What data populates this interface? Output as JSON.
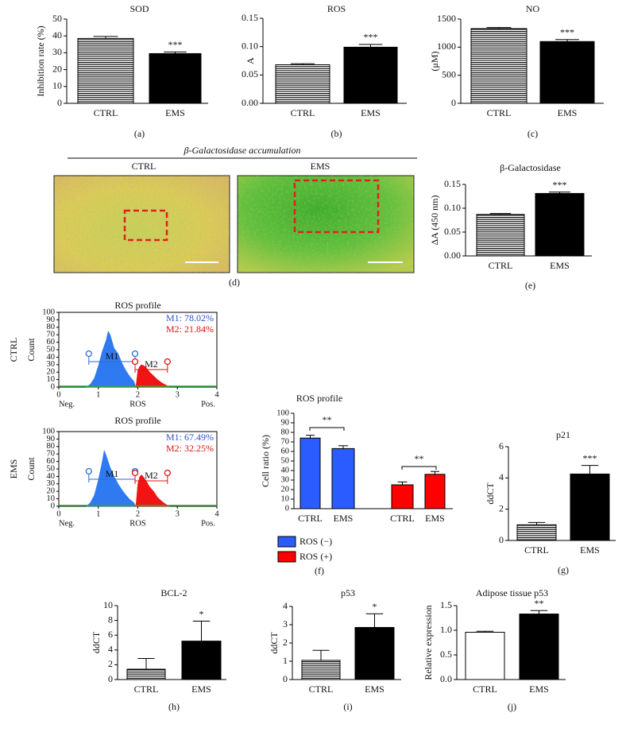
{
  "chart_data": [
    {
      "type": "bar",
      "title": "SOD",
      "panel_label": "(a)",
      "ylabel": "Inhibition rate (%)",
      "categories": [
        "CTRL",
        "EMS"
      ],
      "values": [
        38.5,
        29.5
      ],
      "errors": [
        1.2,
        1.0
      ],
      "significance": [
        null,
        "***"
      ],
      "colors": [
        "#000000",
        "#000000"
      ],
      "hatch": [
        true,
        false
      ],
      "ylim": [
        0,
        50
      ],
      "yticks": [
        0,
        10,
        20,
        30,
        40,
        50
      ]
    },
    {
      "type": "bar",
      "title": "ROS",
      "panel_label": "(b)",
      "ylabel": "A",
      "categories": [
        "CTRL",
        "EMS"
      ],
      "values": [
        0.068,
        0.099
      ],
      "errors": [
        0.002,
        0.005
      ],
      "significance": [
        null,
        "***"
      ],
      "colors": [
        "#000000",
        "#000000"
      ],
      "hatch": [
        true,
        false
      ],
      "ylim": [
        0,
        0.15
      ],
      "yticks": [
        {
          "value": 0,
          "label": "0.00"
        },
        0.05,
        {
          "value": 0.1,
          "label": "0.10"
        },
        0.15
      ]
    },
    {
      "type": "bar",
      "title": "NO",
      "panel_label": "(c)",
      "ylabel": "(μM)",
      "categories": [
        "CTRL",
        "EMS"
      ],
      "values": [
        1330,
        1100
      ],
      "errors": [
        20,
        35
      ],
      "significance": [
        null,
        "***"
      ],
      "colors": [
        "#000000",
        "#000000"
      ],
      "hatch": [
        true,
        false
      ],
      "ylim": [
        0,
        1500
      ],
      "yticks": [
        0,
        500,
        1000,
        1500
      ]
    },
    {
      "type": "bar",
      "title": "β-Galactosidase",
      "panel_label": "(e)",
      "ylabel": "ΔA (450 nm)",
      "categories": [
        "CTRL",
        "EMS"
      ],
      "values": [
        0.087,
        0.131
      ],
      "errors": [
        0.002,
        0.003
      ],
      "significance": [
        null,
        "***"
      ],
      "colors": [
        "#000000",
        "#000000"
      ],
      "hatch": [
        true,
        false
      ],
      "ylim": [
        0,
        0.15
      ],
      "yticks": [
        {
          "value": 0,
          "label": "0.00"
        },
        0.05,
        {
          "value": 0.1,
          "label": "0.10"
        },
        0.15
      ]
    },
    {
      "type": "area",
      "title": "ROS profile",
      "row_label": "CTRL",
      "ylabel": "Count",
      "xlabel": "ROS",
      "x_end_labels": [
        "Neg.",
        "Pos."
      ],
      "xlim": [
        0,
        4
      ],
      "ylim": [
        0,
        100
      ],
      "xticks": [
        0,
        1,
        2,
        3,
        4
      ],
      "yticks": [
        0,
        10,
        20,
        30,
        40,
        50,
        60,
        70,
        80,
        90,
        100
      ],
      "series": [
        {
          "color": "#2f7af0",
          "x": [
            0.7,
            0.8,
            0.9,
            1.0,
            1.1,
            1.2,
            1.25,
            1.3,
            1.4,
            1.5,
            1.6,
            1.7,
            1.8,
            1.9,
            1.95
          ],
          "values": [
            0,
            4,
            12,
            28,
            48,
            63,
            75,
            70,
            52,
            45,
            32,
            22,
            14,
            8,
            0
          ]
        },
        {
          "color": "#f01414",
          "x": [
            1.95,
            2.0,
            2.05,
            2.1,
            2.2,
            2.3,
            2.4,
            2.5,
            2.6,
            2.7,
            2.8
          ],
          "values": [
            0,
            22,
            28,
            30,
            27,
            20,
            15,
            10,
            6,
            3,
            0
          ]
        }
      ],
      "gates": [
        {
          "name": "M1",
          "color": "#2b6cd6",
          "range": [
            0.76,
            1.93
          ]
        },
        {
          "name": "M2",
          "color": "#e01010",
          "range": [
            1.93,
            2.75
          ]
        }
      ],
      "stats": [
        {
          "text": "M1: 78.02%",
          "color": "#3050d0"
        },
        {
          "text": "M2: 21.84%",
          "color": "#e01010"
        }
      ]
    },
    {
      "type": "area",
      "title": "ROS profile",
      "row_label": "EMS",
      "ylabel": "Count",
      "xlabel": "ROS",
      "x_end_labels": [
        "Neg.",
        "Pos."
      ],
      "xlim": [
        0,
        4
      ],
      "ylim": [
        0,
        100
      ],
      "xticks": [
        0,
        1,
        2,
        3,
        4
      ],
      "yticks": [
        0,
        10,
        20,
        30,
        40,
        50,
        60,
        70,
        80,
        90,
        100
      ],
      "series": [
        {
          "color": "#2f7af0",
          "x": [
            0.7,
            0.8,
            0.9,
            1.0,
            1.1,
            1.15,
            1.2,
            1.3,
            1.4,
            1.5,
            1.6,
            1.7,
            1.8,
            1.9,
            1.95
          ],
          "values": [
            0,
            5,
            15,
            35,
            60,
            75,
            68,
            52,
            40,
            30,
            22,
            15,
            9,
            5,
            0
          ]
        },
        {
          "color": "#f01414",
          "x": [
            1.95,
            2.0,
            2.05,
            2.1,
            2.2,
            2.3,
            2.4,
            2.5,
            2.6,
            2.7,
            2.8
          ],
          "values": [
            0,
            30,
            40,
            42,
            35,
            26,
            20,
            12,
            7,
            3,
            0
          ]
        }
      ],
      "gates": [
        {
          "name": "M1",
          "color": "#2b6cd6",
          "range": [
            0.76,
            1.93
          ]
        },
        {
          "name": "M2",
          "color": "#e01010",
          "range": [
            1.93,
            2.75
          ]
        }
      ],
      "stats": [
        {
          "text": "M1: 67.49%",
          "color": "#3050d0"
        },
        {
          "text": "M2: 32.25%",
          "color": "#e01010"
        }
      ]
    },
    {
      "type": "bar",
      "title": "ROS profile",
      "panel_label": "(f)",
      "ylabel": "Cell ratio (%)",
      "categories": [
        "CTRL",
        "EMS",
        "CTRL",
        "EMS"
      ],
      "series": [
        {
          "name": "ROS (−)",
          "color": "#2b5cff",
          "values": [
            74,
            63,
            null,
            null
          ],
          "errors": [
            3,
            3,
            null,
            null
          ]
        },
        {
          "name": "ROS (+)",
          "color": "#ff0000",
          "values": [
            null,
            null,
            25,
            36
          ],
          "errors": [
            null,
            null,
            3,
            3
          ]
        }
      ],
      "annotations": [
        "**",
        "**"
      ],
      "ylim": [
        0,
        100
      ],
      "yticks": [
        0,
        10,
        20,
        30,
        40,
        50,
        60,
        70,
        80,
        90,
        100
      ]
    },
    {
      "type": "bar",
      "title": "p21",
      "panel_label": "(g)",
      "ylabel": "ddCT",
      "categories": [
        "CTRL",
        "EMS"
      ],
      "values": [
        1.0,
        4.25
      ],
      "errors": [
        0.15,
        0.55
      ],
      "significance": [
        null,
        "***"
      ],
      "colors": [
        "#000000",
        "#000000"
      ],
      "hatch": [
        true,
        false
      ],
      "ylim": [
        0,
        6
      ],
      "yticks": [
        0,
        2,
        4,
        6
      ]
    },
    {
      "type": "bar",
      "title": "BCL-2",
      "panel_label": "(h)",
      "ylabel": "ddCT",
      "categories": [
        "CTRL",
        "EMS"
      ],
      "values": [
        1.4,
        5.2
      ],
      "errors": [
        1.45,
        2.7
      ],
      "significance": [
        null,
        "*"
      ],
      "colors": [
        "#000000",
        "#000000"
      ],
      "hatch": [
        true,
        false
      ],
      "ylim": [
        0,
        10
      ],
      "yticks": [
        0,
        2,
        4,
        6,
        8,
        10
      ]
    },
    {
      "type": "bar",
      "title": "p53",
      "panel_label": "(i)",
      "ylabel": "ddCT",
      "categories": [
        "CTRL",
        "EMS"
      ],
      "values": [
        1.05,
        2.85
      ],
      "errors": [
        0.55,
        0.75
      ],
      "significance": [
        null,
        "*"
      ],
      "colors": [
        "#000000",
        "#000000"
      ],
      "hatch": [
        true,
        false
      ],
      "ylim": [
        0,
        4
      ],
      "yticks": [
        0,
        1,
        2,
        3,
        4
      ]
    },
    {
      "type": "bar",
      "title": "Adipose tissue p53",
      "panel_label": "(j)",
      "ylabel": "Relative expression",
      "categories": [
        "CTRL",
        "EMS"
      ],
      "values": [
        0.96,
        1.33
      ],
      "errors": [
        0.02,
        0.07
      ],
      "significance": [
        null,
        "**"
      ],
      "colors": [
        "#ffffff",
        "#000000"
      ],
      "hatch": [
        false,
        false
      ],
      "ylim": [
        0,
        1.5
      ],
      "yticks": [
        {
          "value": 0,
          "label": "0.0"
        },
        0.5,
        {
          "value": 1,
          "label": "1.0"
        },
        1.5
      ]
    }
  ],
  "image_panel": {
    "title": "β-Galactosidase accumulation",
    "labels": [
      "CTRL",
      "EMS"
    ],
    "panel_label": "(d)"
  }
}
